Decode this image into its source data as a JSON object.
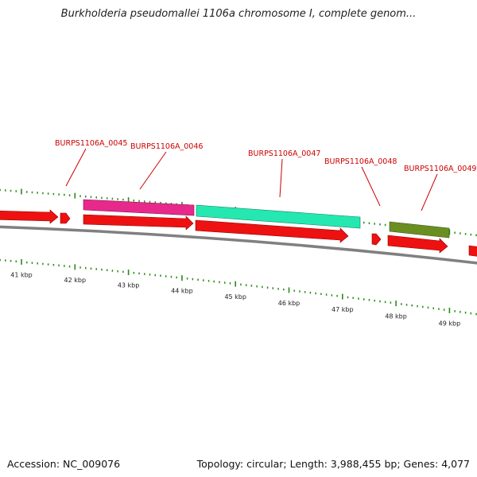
{
  "title": "Burkholderia pseudomallei 1106a chromosome I, complete genom...",
  "footer": {
    "accession": "Accession: NC_009076",
    "topology": "Topology: circular; Length: 3,988,455 bp; Genes: 4,077"
  },
  "colors": {
    "gene_label": "#cc0000",
    "tick": "#2a8a1a",
    "cds": "#ee1111",
    "backbone": "#808080",
    "feature_magenta": "#e8298c",
    "feature_teal": "#25e8b0",
    "feature_olive": "#6b8e23"
  },
  "axis": {
    "unit": "kbp",
    "labels": [
      "41 kbp",
      "42 kbp",
      "43 kbp",
      "44 kbp",
      "45 kbp",
      "46 kbp",
      "47 kbp",
      "48 kbp",
      "49 kbp"
    ]
  },
  "gene_labels": [
    "BURPS1106A_0045",
    "BURPS1106A_0046",
    "BURPS1106A_0047",
    "BURPS1106A_0048",
    "BURPS1106A_0049"
  ]
}
